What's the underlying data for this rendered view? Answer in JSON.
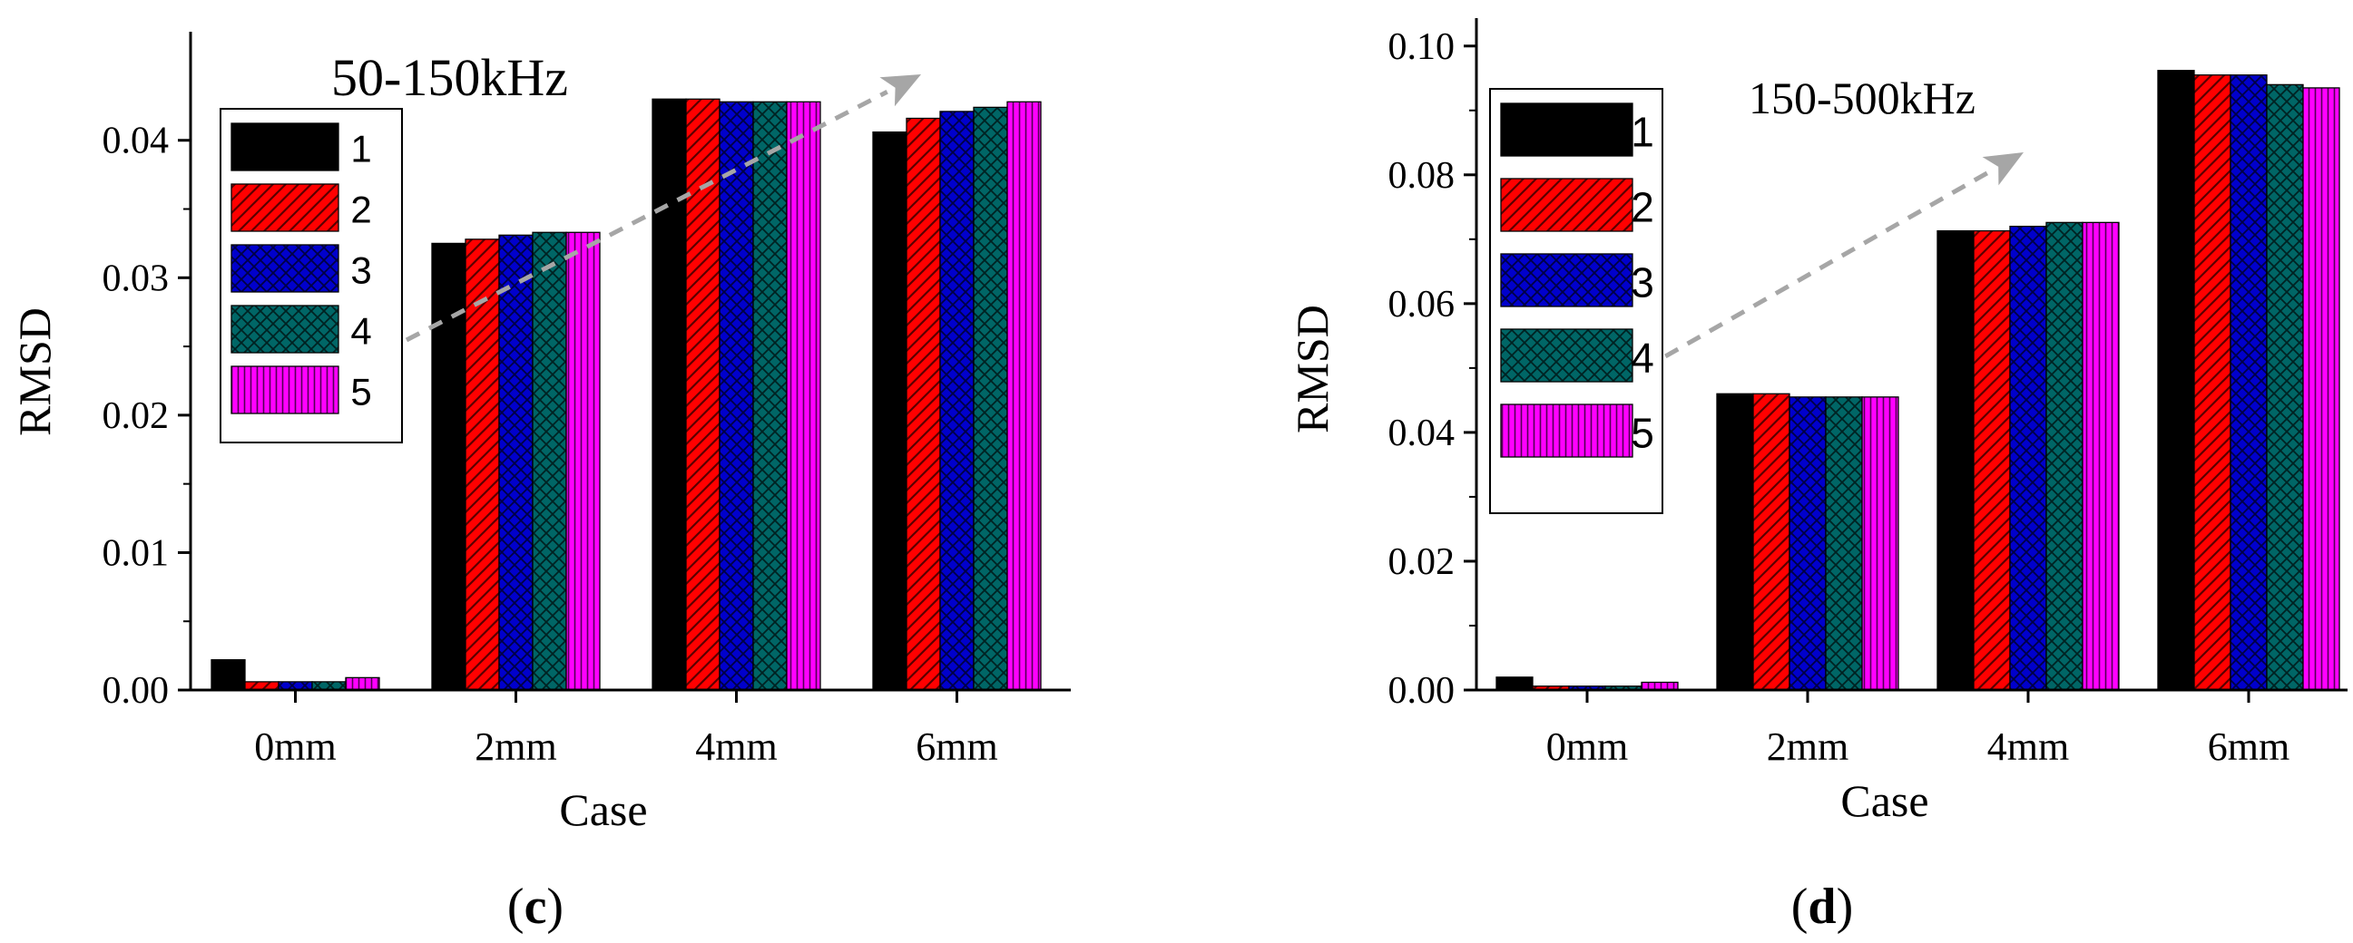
{
  "colors": {
    "series": [
      "#000000",
      "#ff0000",
      "#0000cc",
      "#006666",
      "#ff00ff"
    ],
    "hatch_lines": [
      "#000000",
      "#5a0000",
      "#000044",
      "#002222",
      "#550055"
    ],
    "arrow": "#a6a6a6",
    "axis": "#000000"
  },
  "chart_data": [
    {
      "type": "bar",
      "panel_label": "(c)",
      "panel_letter": "c",
      "annotation": "50-150kHz",
      "xlabel": "Case",
      "ylabel": "RMSD",
      "categories": [
        "0mm",
        "2mm",
        "4mm",
        "6mm"
      ],
      "ylim": [
        0,
        0.046
      ],
      "yticks": [
        0,
        0.01,
        0.02,
        0.03,
        0.04
      ],
      "ytick_labels": [
        "0.00",
        "0.01",
        "0.02",
        "0.03",
        "0.04"
      ],
      "legend_position": "top-left",
      "grid": false,
      "series": [
        {
          "name": "1",
          "pattern": "solid",
          "values": [
            0.0022,
            0.0325,
            0.043,
            0.0406
          ]
        },
        {
          "name": "2",
          "pattern": "diagonal",
          "values": [
            0.0006,
            0.0328,
            0.043,
            0.0416
          ]
        },
        {
          "name": "3",
          "pattern": "crosshatch",
          "values": [
            0.0006,
            0.0331,
            0.0428,
            0.0421
          ]
        },
        {
          "name": "4",
          "pattern": "crosshatch",
          "values": [
            0.0006,
            0.0333,
            0.0428,
            0.0424
          ]
        },
        {
          "name": "5",
          "pattern": "vertical",
          "values": [
            0.0009,
            0.0333,
            0.0428,
            0.0428
          ]
        }
      ]
    },
    {
      "type": "bar",
      "panel_label": "(d)",
      "panel_letter": "d",
      "annotation": "150-500kHz",
      "xlabel": "Case",
      "ylabel": "RMSD",
      "categories": [
        "0mm",
        "2mm",
        "4mm",
        "6mm"
      ],
      "ylim": [
        0,
        0.104
      ],
      "yticks": [
        0,
        0.02,
        0.04,
        0.06,
        0.08,
        0.1
      ],
      "ytick_labels": [
        "0.00",
        "0.02",
        "0.04",
        "0.06",
        "0.08",
        "0.10"
      ],
      "legend_position": "top-left",
      "grid": false,
      "series": [
        {
          "name": "1",
          "pattern": "solid",
          "values": [
            0.002,
            0.046,
            0.0713,
            0.0962
          ]
        },
        {
          "name": "2",
          "pattern": "diagonal",
          "values": [
            0.0006,
            0.046,
            0.0713,
            0.0955
          ]
        },
        {
          "name": "3",
          "pattern": "crosshatch",
          "values": [
            0.0006,
            0.0455,
            0.072,
            0.0955
          ]
        },
        {
          "name": "4",
          "pattern": "crosshatch",
          "values": [
            0.0006,
            0.0455,
            0.0726,
            0.094
          ]
        },
        {
          "name": "5",
          "pattern": "vertical",
          "values": [
            0.0012,
            0.0455,
            0.0726,
            0.0935
          ]
        }
      ]
    }
  ]
}
